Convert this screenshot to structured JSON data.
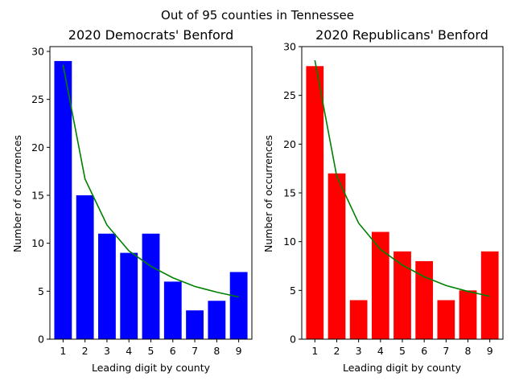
{
  "figure": {
    "suptitle": "Out of 95 counties in Tennessee"
  },
  "chart_data": [
    {
      "type": "bar",
      "title": "2020 Democrats' Benford",
      "xlabel": "Leading digit by county",
      "ylabel": "Number of occurrences",
      "categories": [
        1,
        2,
        3,
        4,
        5,
        6,
        7,
        8,
        9
      ],
      "values": [
        29,
        15,
        11,
        9,
        11,
        6,
        3,
        4,
        7
      ],
      "bar_color": "#0000ff",
      "expected": [
        28.6,
        16.7,
        11.9,
        9.2,
        7.6,
        6.4,
        5.5,
        4.9,
        4.4
      ],
      "expected_color": "#008000",
      "ylim": [
        0,
        30.5
      ],
      "yticks": [
        0,
        5,
        10,
        15,
        20,
        25,
        30
      ],
      "grid": false
    },
    {
      "type": "bar",
      "title": "2020 Republicans' Benford",
      "xlabel": "Leading digit by county",
      "ylabel": "Number of occurrences",
      "categories": [
        1,
        2,
        3,
        4,
        5,
        6,
        7,
        8,
        9
      ],
      "values": [
        28,
        17,
        4,
        11,
        9,
        8,
        4,
        5,
        9
      ],
      "bar_color": "#ff0000",
      "expected": [
        28.6,
        16.7,
        11.9,
        9.2,
        7.6,
        6.4,
        5.5,
        4.9,
        4.4
      ],
      "expected_color": "#008000",
      "ylim": [
        0,
        30
      ],
      "yticks": [
        0,
        5,
        10,
        15,
        20,
        25,
        30
      ],
      "grid": false
    }
  ]
}
